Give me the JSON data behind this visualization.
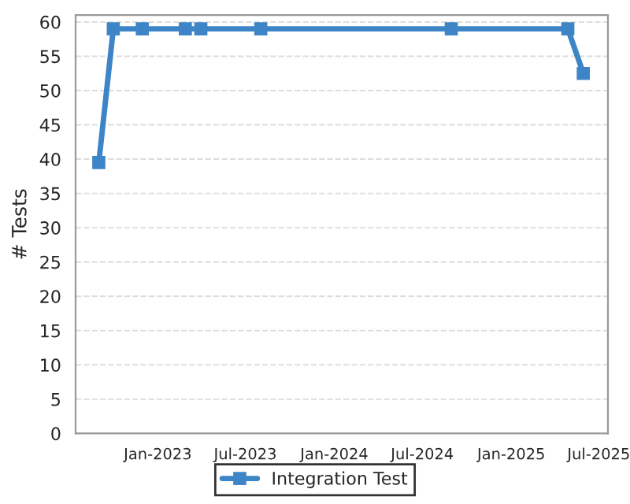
{
  "chart_data": {
    "type": "line",
    "ylabel": "# Tests",
    "x": [
      "2022-09-01",
      "2022-10-01",
      "2022-11-30",
      "2023-02-27",
      "2023-03-31",
      "2023-08-02",
      "2024-08-30",
      "2025-04-28",
      "2025-05-30"
    ],
    "series": [
      {
        "name": "Integration Test",
        "color": "#3d85c6",
        "values": [
          39.5,
          59,
          59,
          59,
          59,
          59,
          59,
          59,
          52.5
        ]
      }
    ],
    "xlim": [
      "2022-07-15",
      "2025-07-20"
    ],
    "xticks": [
      {
        "value": "2023-01-01",
        "label": "Jan-2023"
      },
      {
        "value": "2023-07-01",
        "label": "Jul-2023"
      },
      {
        "value": "2024-01-01",
        "label": "Jan-2024"
      },
      {
        "value": "2024-07-01",
        "label": "Jul-2024"
      },
      {
        "value": "2025-01-01",
        "label": "Jan-2025"
      },
      {
        "value": "2025-07-01",
        "label": "Jul-2025"
      }
    ],
    "ylim": [
      0,
      61
    ],
    "yticks": [
      0,
      5,
      10,
      15,
      20,
      25,
      30,
      35,
      40,
      45,
      50,
      55,
      60
    ],
    "grid": "y",
    "legend": "bottom",
    "marker": "square",
    "line_style": "solid"
  }
}
